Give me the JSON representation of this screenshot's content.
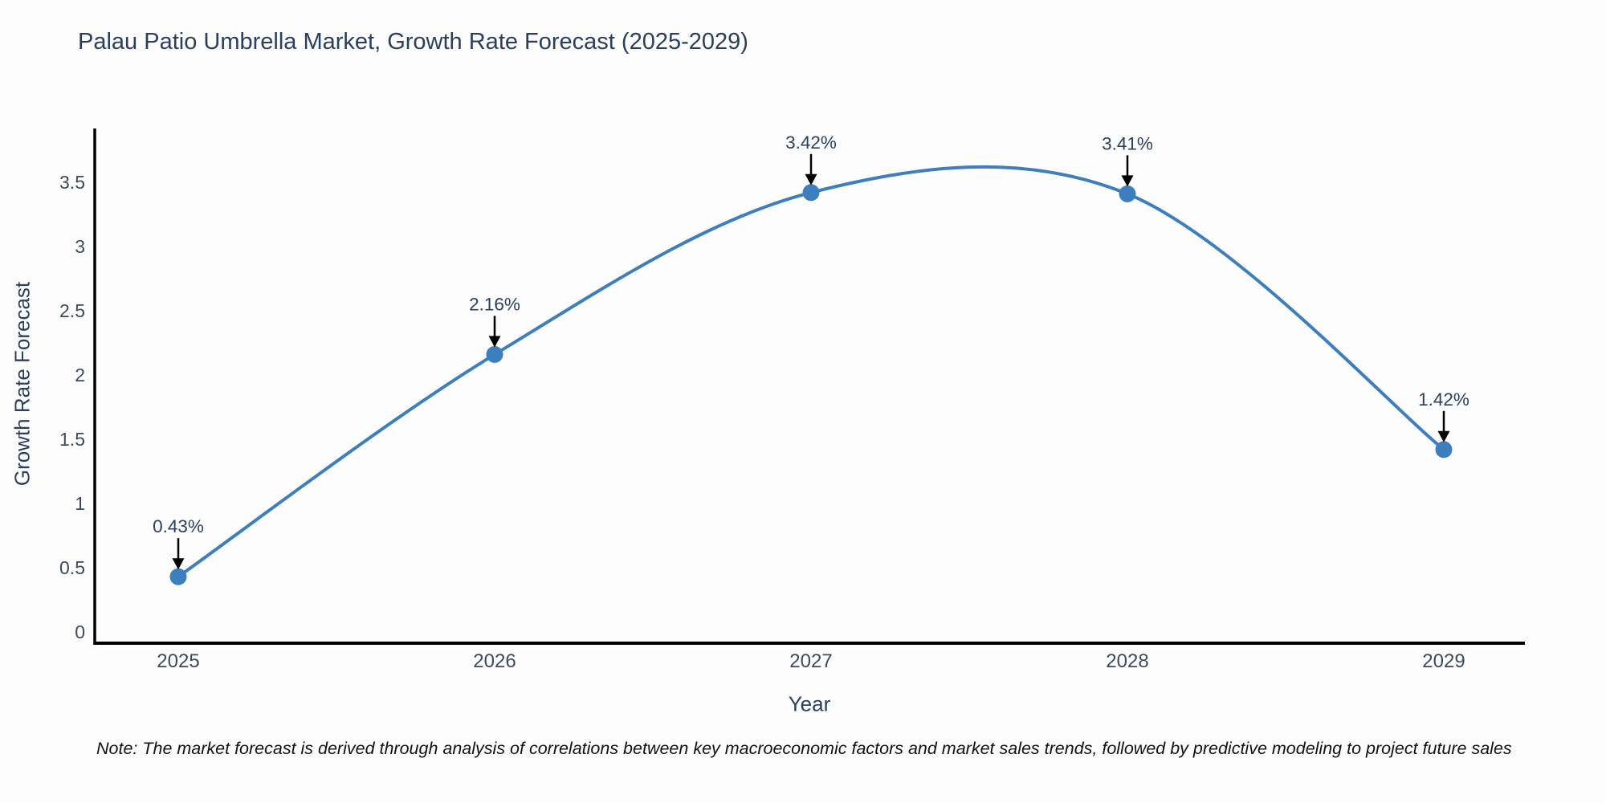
{
  "chart": {
    "title": "Palau Patio Umbrella Market, Growth Rate Forecast (2025-2029)",
    "ylabel": "Growth Rate Forecast",
    "xlabel": "Year",
    "note": "Note: The market forecast is derived through analysis of correlations between key macroeconomic factors and market sales trends, followed by predictive modeling to project future sales"
  },
  "chart_data": {
    "type": "line",
    "line_shape": "spline",
    "title": "Palau Patio Umbrella Market, Growth Rate Forecast (2025-2029)",
    "xlabel": "Year",
    "ylabel": "Growth Rate Forecast",
    "x": [
      2025,
      2026,
      2027,
      2028,
      2029
    ],
    "values": [
      0.43,
      2.16,
      3.42,
      3.41,
      1.42
    ],
    "point_labels": [
      "0.43%",
      "2.16%",
      "3.42%",
      "3.41%",
      "1.42%"
    ],
    "x_tick_labels": [
      "2025",
      "2026",
      "2027",
      "2028",
      "2029"
    ],
    "y_tick_labels": [
      "0",
      "0.5",
      "1",
      "1.5",
      "2",
      "2.5",
      "3",
      "3.5"
    ],
    "yticks": [
      0,
      0.5,
      1,
      1.5,
      2,
      2.5,
      3,
      3.5
    ],
    "ylim": [
      0,
      3.9
    ],
    "grid": false,
    "legend_position": "none",
    "line_color": "#3d7ebf",
    "marker_color": "#3d7ebf",
    "axis_color": "#000000",
    "annotation_arrow_color": "#000000",
    "annotation_text_color": "#2a3f5f",
    "tick_label_color": "#3b4a5f",
    "title_color": "#2a3f5f",
    "background_color": "#fdfdfd"
  }
}
